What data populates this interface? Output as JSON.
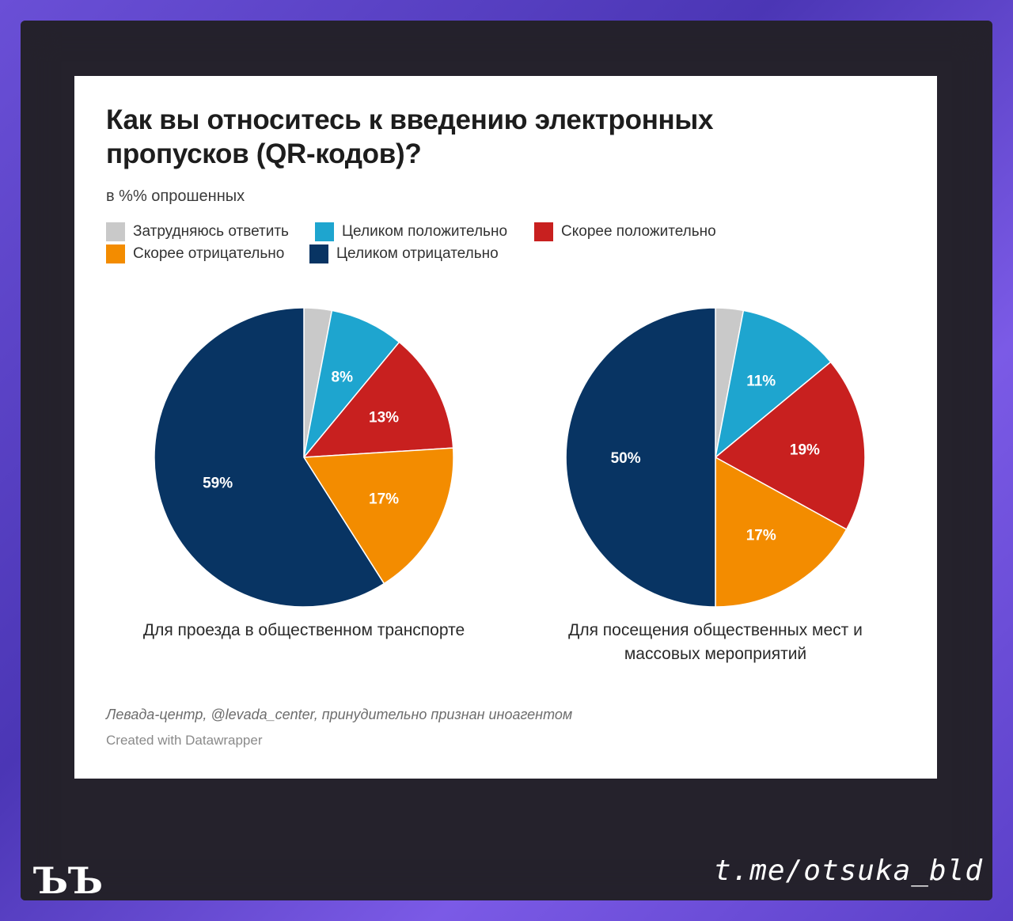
{
  "title": "Как вы относитесь к введению электронных пропусков (QR-кодов)?",
  "subtitle": "в %% опрошенных",
  "legend": [
    {
      "label": "Затрудняюсь ответить",
      "color": "#c9c9c9"
    },
    {
      "label": "Целиком положительно",
      "color": "#1ea5cf"
    },
    {
      "label": "Скорее положительно",
      "color": "#c8201f"
    },
    {
      "label": "Скорее отрицательно",
      "color": "#f38c00"
    },
    {
      "label": "Целиком отрицательно",
      "color": "#083463"
    }
  ],
  "chart_data": [
    {
      "type": "pie",
      "title": "Для проезда в общественном транспорте",
      "categories": [
        "Затрудняюсь ответить",
        "Целиком положительно",
        "Скорее положительно",
        "Скорее отрицательно",
        "Целиком отрицательно"
      ],
      "values": [
        3,
        8,
        13,
        17,
        59
      ],
      "labels": [
        "",
        "8%",
        "13%",
        "17%",
        "59%"
      ]
    },
    {
      "type": "pie",
      "title": "Для посещения общественных мест и массовых мероприятий",
      "categories": [
        "Затрудняюсь ответить",
        "Целиком положительно",
        "Скорее положительно",
        "Скорее отрицательно",
        "Целиком отрицательно"
      ],
      "values": [
        3,
        11,
        19,
        17,
        50
      ],
      "labels": [
        "",
        "11%",
        "19%",
        "17%",
        "50%"
      ]
    }
  ],
  "captions": {
    "left": "Для проезда в общественном транспорте",
    "right_line1": "Для посещения общественных мест и",
    "right_line2": "массовых мероприятий"
  },
  "source": "Левада-центр, @levada_center, принудительно признан иноагентом",
  "created": "Created with Datawrapper",
  "logo_text": "ЪЪ",
  "handle": "t.me/otsuka_bld"
}
